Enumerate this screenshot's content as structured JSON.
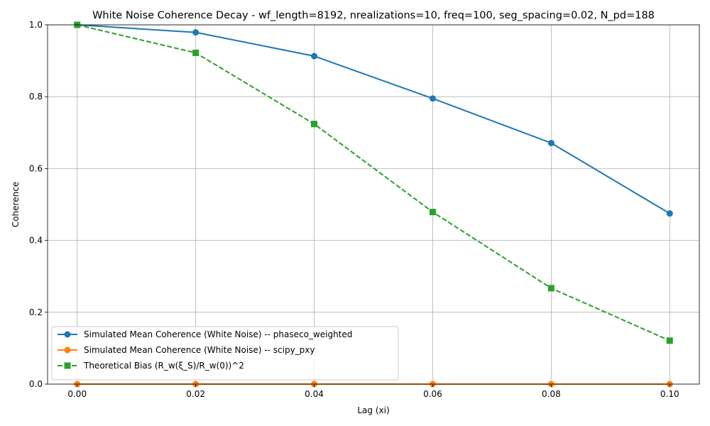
{
  "chart_data": {
    "type": "line",
    "title": "White Noise Coherence Decay - wf_length=8192, nrealizations=10, freq=100, seg_spacing=0.02, N_pd=188",
    "xlabel": "Lag (xi)",
    "ylabel": "Coherence",
    "xlim": [
      -0.005,
      0.105
    ],
    "ylim": [
      0,
      1.0
    ],
    "x_ticks": [
      "0.00",
      "0.02",
      "0.04",
      "0.06",
      "0.08",
      "0.10"
    ],
    "y_ticks": [
      "0.0",
      "0.2",
      "0.4",
      "0.6",
      "0.8",
      "1.0"
    ],
    "grid": true,
    "legend_position": "lower-left",
    "x": [
      0.0,
      0.02,
      0.04,
      0.06,
      0.08,
      0.1
    ],
    "series": [
      {
        "name": "Simulated Mean Coherence (White Noise) -- phaseco_weighted",
        "values": [
          1.0,
          0.979,
          0.913,
          0.795,
          0.671,
          0.475
        ],
        "color": "#1f77b4",
        "line_style": "solid",
        "marker": "circle"
      },
      {
        "name": "Simulated Mean Coherence (White Noise) -- scipy_pxy",
        "values": [
          0.0,
          0.0,
          0.0,
          0.0,
          0.0,
          0.0
        ],
        "color": "#ff7f0e",
        "line_style": "solid",
        "marker": "circle"
      },
      {
        "name": "Theoretical Bias (R_w(ξ_S)/R_w(0))^2",
        "values": [
          1.0,
          0.922,
          0.724,
          0.479,
          0.267,
          0.121
        ],
        "color": "#2ca02c",
        "line_style": "dashed",
        "marker": "square"
      }
    ]
  }
}
